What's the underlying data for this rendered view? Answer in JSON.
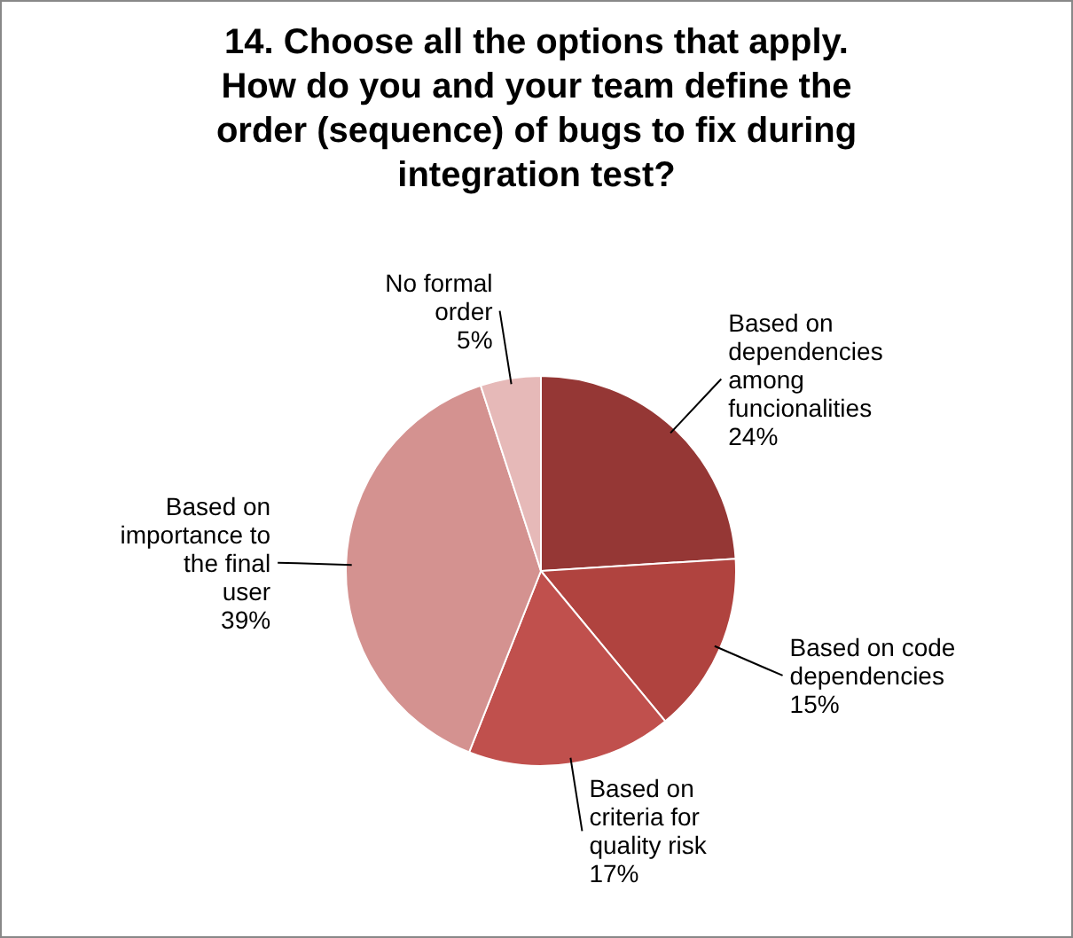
{
  "chart_data": {
    "type": "pie",
    "title": "14. Choose all the options that apply. How do you and your team define the order (sequence) of bugs to fix during integration test?",
    "categories": [
      "Based on dependencies among funcionalities",
      "Based on code dependencies",
      "Based on criteria for quality risk",
      "Based on importance to the final user",
      "No formal order"
    ],
    "values": [
      24,
      15,
      17,
      39,
      5
    ],
    "colors": [
      "#953735",
      "#b0433f",
      "#c0504d",
      "#d49290",
      "#e6b9b8"
    ],
    "value_labels": [
      "24%",
      "15%",
      "17%",
      "39%",
      "5%"
    ]
  }
}
